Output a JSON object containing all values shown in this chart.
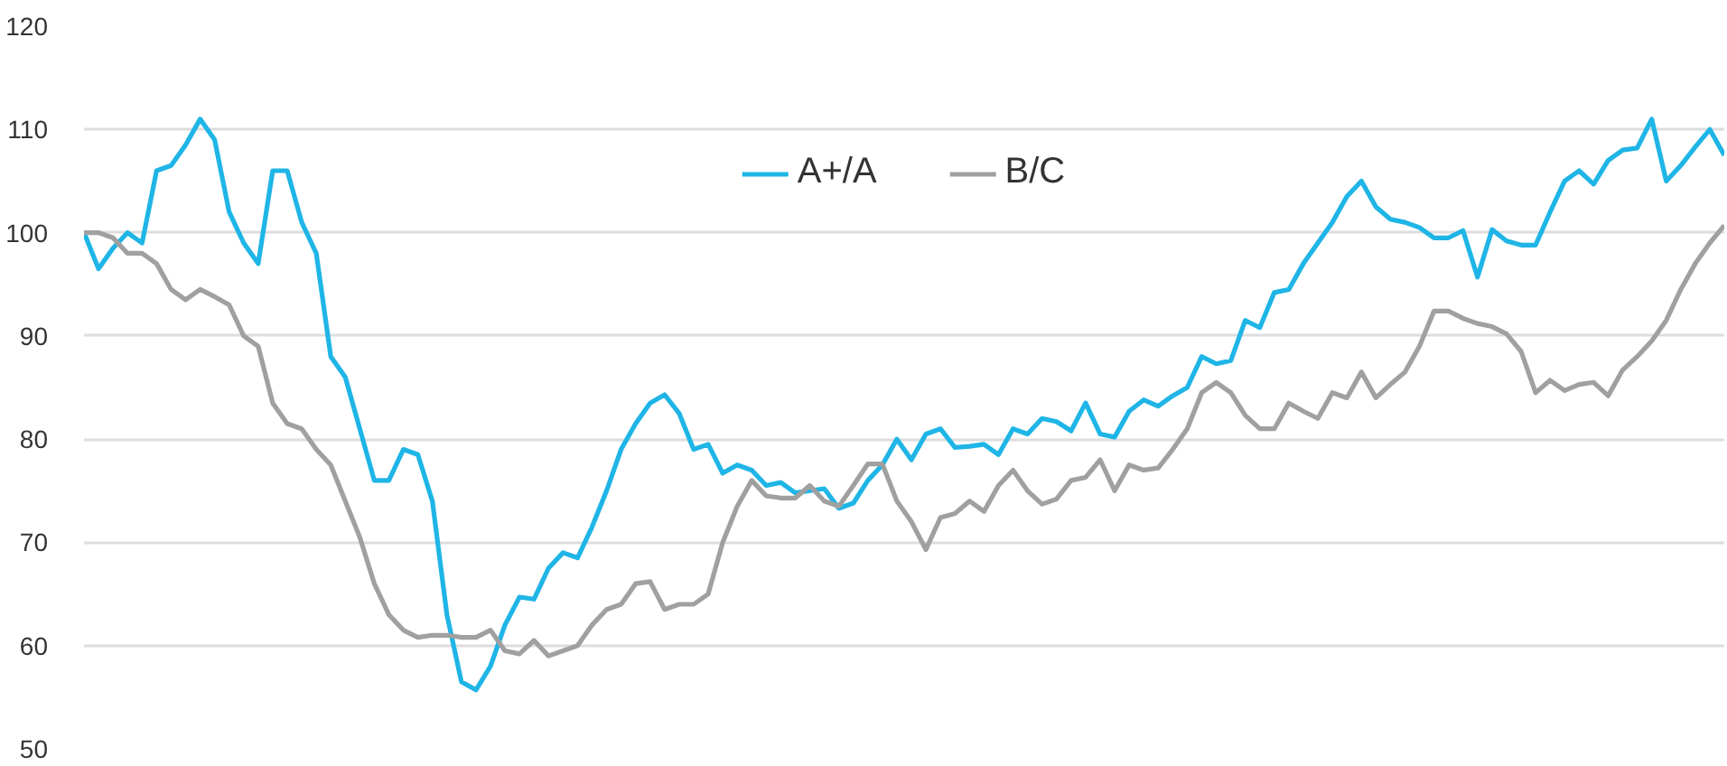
{
  "chart_data": {
    "type": "line",
    "categories": [
      null,
      null,
      null,
      null,
      null,
      null,
      null,
      null,
      null,
      null,
      null,
      null,
      null,
      null,
      null,
      null,
      null,
      null,
      null,
      null,
      null,
      null,
      null,
      null,
      null,
      null,
      null,
      null,
      null,
      null,
      null,
      null,
      null,
      null,
      null,
      null,
      null,
      null,
      null,
      null,
      null,
      null,
      null,
      null,
      null,
      null,
      null,
      null,
      null,
      null,
      null,
      null,
      null,
      null,
      null,
      null,
      null,
      null,
      null,
      null,
      null,
      null,
      null,
      null,
      null,
      null,
      null,
      null,
      null,
      null,
      null,
      null,
      null,
      null,
      null,
      null,
      null,
      null,
      null,
      null,
      null,
      null,
      null,
      null,
      null,
      null,
      null,
      null,
      null,
      null,
      null,
      null,
      null,
      null,
      null,
      null,
      null,
      null,
      null,
      null,
      null,
      null,
      null,
      null,
      null,
      null,
      null,
      null,
      null,
      null,
      null,
      null,
      null,
      null
    ],
    "series": [
      {
        "name": "A+/A",
        "color": "#1fb5e6",
        "values": [
          100,
          96.5,
          98.5,
          100,
          99,
          106,
          106.5,
          108.5,
          111,
          109,
          102,
          99,
          97,
          106,
          106,
          101,
          98,
          88,
          86,
          81,
          76,
          76,
          79,
          78.5,
          74,
          63,
          56.5,
          55.7,
          58,
          62,
          64.7,
          64.5,
          67.5,
          69,
          68.5,
          71.5,
          75,
          79,
          81.5,
          83.5,
          84.3,
          82.5,
          79,
          79.5,
          76.7,
          77.5,
          77,
          75.5,
          75.8,
          74.8,
          75,
          75.2,
          73.3,
          73.8,
          76,
          77.5,
          80,
          78,
          80.5,
          81,
          79.2,
          79.3,
          79.5,
          78.5,
          81,
          80.5,
          82,
          81.7,
          80.8,
          83.5,
          80.5,
          80.2,
          82.7,
          83.8,
          83.2,
          84.2,
          85,
          88,
          87.3,
          87.6,
          91.5,
          90.8,
          94.2,
          94.5,
          97,
          99,
          101,
          103.5,
          105,
          102.5,
          101.3,
          101,
          100.5,
          99.5,
          99.5,
          100.2,
          95.7,
          100.3,
          99.2,
          98.8,
          98.8,
          102,
          105,
          106,
          104.7,
          107,
          108,
          108.2,
          111,
          105,
          106.5,
          108.3,
          110,
          107.5
        ]
      },
      {
        "name": "B/C",
        "color": "#a0a0a0",
        "values": [
          100,
          100,
          99.5,
          98,
          98,
          97,
          94.5,
          93.5,
          94.5,
          93.8,
          93,
          90,
          89,
          83.5,
          81.5,
          81,
          79,
          77.5,
          74,
          70.5,
          66,
          63,
          61.5,
          60.8,
          61,
          61,
          60.8,
          60.8,
          61.5,
          59.5,
          59.2,
          60.5,
          59,
          59.5,
          60,
          62,
          63.5,
          64,
          66,
          66.2,
          63.5,
          64,
          64,
          65,
          70,
          73.5,
          76,
          74.5,
          74.3,
          74.3,
          75.5,
          74,
          73.5,
          75.5,
          77.6,
          77.6,
          74,
          72,
          69.3,
          72.4,
          72.8,
          74,
          73,
          75.5,
          77,
          75,
          73.7,
          74.2,
          76,
          76.3,
          78,
          75,
          77.5,
          77,
          77.2,
          79,
          81,
          84.5,
          85.5,
          84.5,
          82.3,
          81,
          81,
          83.5,
          82.7,
          82,
          84.5,
          84,
          86.5,
          84,
          85.3,
          86.5,
          89,
          92.4,
          92.4,
          91.7,
          91.2,
          90.9,
          90.2,
          88.5,
          84.5,
          85.7,
          84.7,
          85.3,
          85.5,
          84.2,
          86.7,
          88,
          89.5,
          91.5,
          94.5,
          97,
          99,
          100.7
        ]
      }
    ],
    "ylim": [
      50,
      120
    ],
    "yticks": [
      50,
      60,
      70,
      80,
      90,
      100,
      110,
      120
    ],
    "grid": "y",
    "legend": "top",
    "tick_labels": "y"
  }
}
